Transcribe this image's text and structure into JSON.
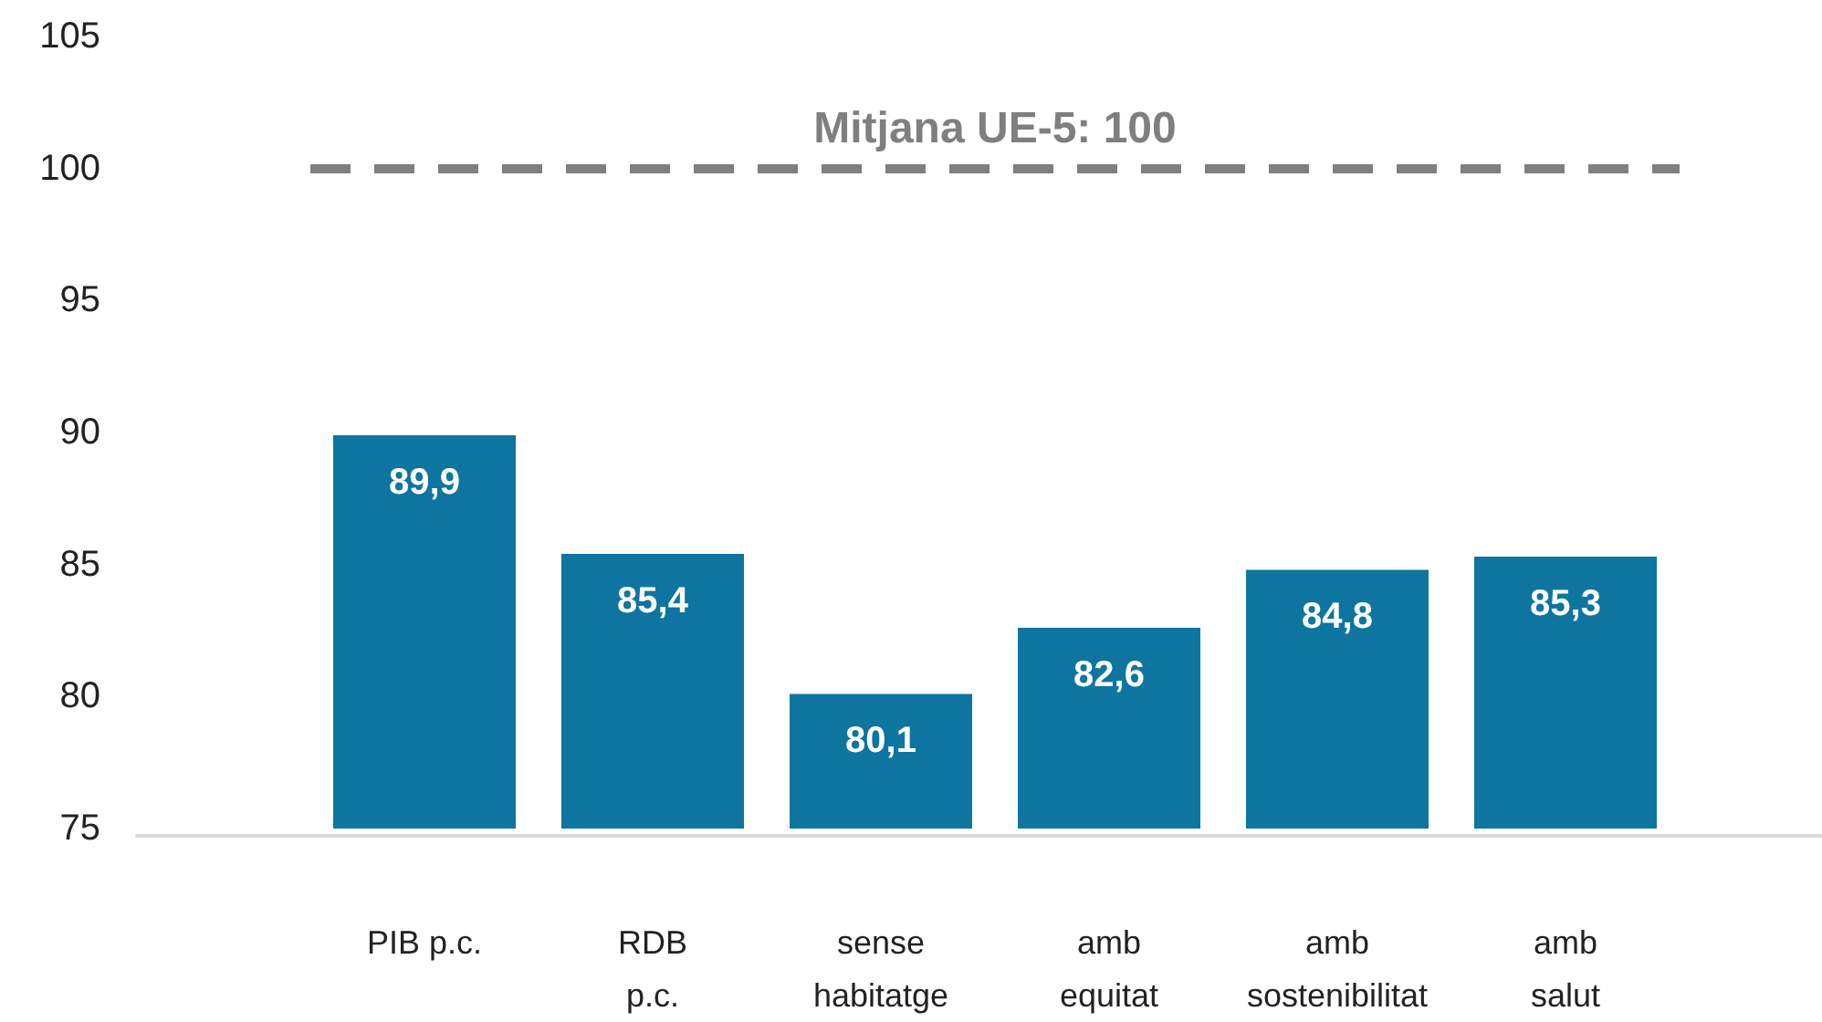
{
  "chart_data": {
    "type": "bar",
    "categories": [
      "PIB p.c.",
      "RDB\np.c.",
      "sense\nhabitatge",
      "amb\nequitat",
      "amb\nsostenibilitat",
      "amb\nsalut"
    ],
    "values": [
      89.9,
      85.4,
      80.1,
      82.6,
      84.8,
      85.3
    ],
    "color": "#0e75a0",
    "value_labels": [
      "89,9",
      "85,4",
      "80,1",
      "82,6",
      "84,8",
      "85,3"
    ],
    "ylim": [
      75,
      105
    ],
    "yticks": [
      75,
      80,
      85,
      90,
      95,
      100,
      105
    ],
    "ref_lines": [
      {
        "axis": "y",
        "value": 100,
        "label": "Mitjana UE-5: 100",
        "color": "#7f7f7f",
        "line_style": "dashed"
      }
    ]
  }
}
